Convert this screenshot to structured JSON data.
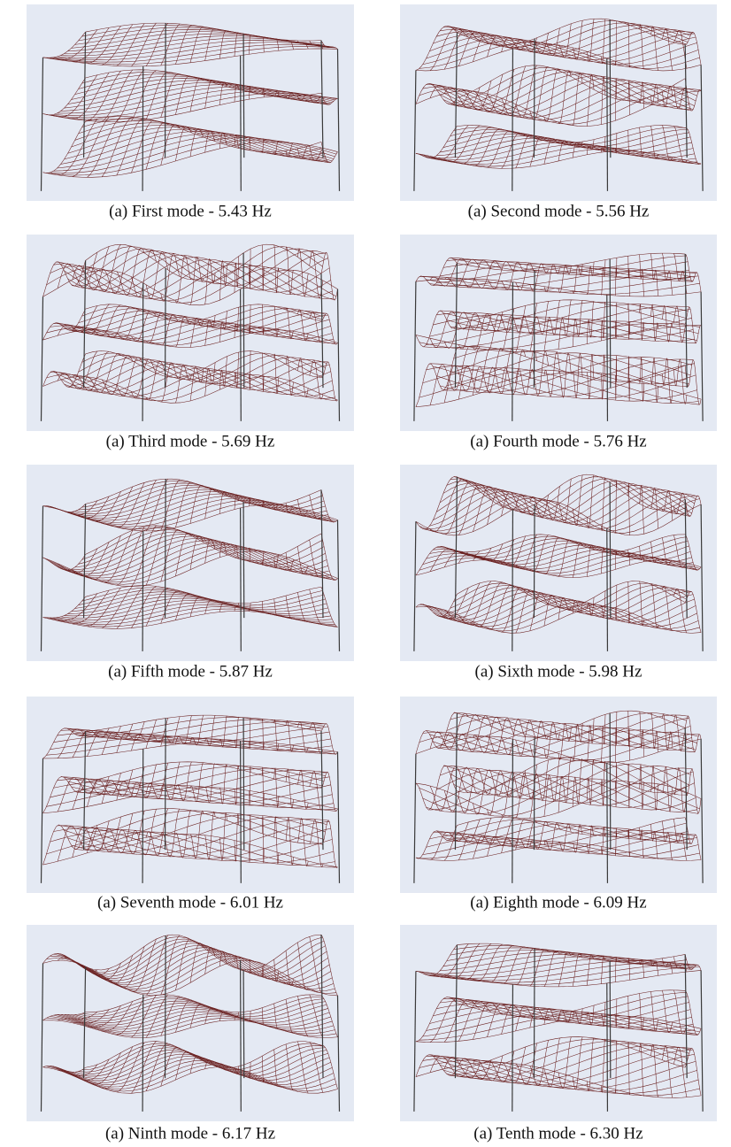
{
  "panels": [
    {
      "caption": "(a) First mode - 5.43 Hz"
    },
    {
      "caption": "(a) Second mode - 5.56 Hz"
    },
    {
      "caption": "(a) Third mode - 5.69 Hz"
    },
    {
      "caption": "(a) Fourth mode - 5.76 Hz"
    },
    {
      "caption": "(a) Fifth mode - 5.87 Hz"
    },
    {
      "caption": "(a) Sixth mode - 5.98 Hz"
    },
    {
      "caption": "(a) Seventh mode - 6.01 Hz"
    },
    {
      "caption": "(a) Eighth mode - 6.09 Hz"
    },
    {
      "caption": "(a) Ninth mode - 6.17 Hz"
    },
    {
      "caption": "(a) Tenth mode - 6.30 Hz"
    }
  ]
}
